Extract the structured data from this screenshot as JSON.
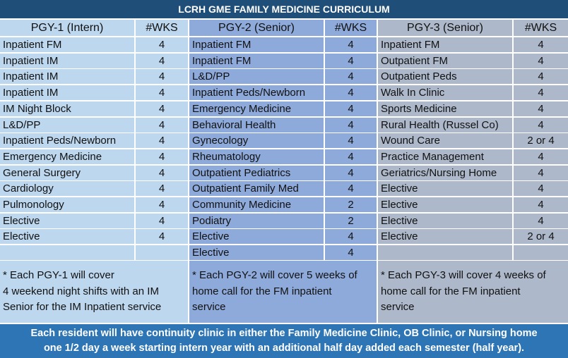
{
  "title": "LCRH GME FAMILY MEDICINE CURRICULUM",
  "columns": [
    {
      "header": "PGY-1 (Intern)",
      "wks_header": "#WKS",
      "rows": [
        [
          "Inpatient FM",
          "4"
        ],
        [
          "Inpatient IM",
          "4"
        ],
        [
          "Inpatient IM",
          "4"
        ],
        [
          "Inpatient IM",
          "4"
        ],
        [
          "IM Night Block",
          "4"
        ],
        [
          "L&D/PP",
          "4"
        ],
        [
          "Inpatient Peds/Newborn",
          "4"
        ],
        [
          "Emergency Medicine",
          "4"
        ],
        [
          "General Surgery",
          "4"
        ],
        [
          "Cardiology",
          "4"
        ],
        [
          "Pulmonology",
          "4"
        ],
        [
          "Elective",
          "4"
        ],
        [
          "Elective",
          "4"
        ]
      ],
      "note": [
        "* Each PGY-1 will cover",
        "4 weekend night shifts with an IM",
        "Senior for the IM Inpatient service"
      ]
    },
    {
      "header": "PGY-2 (Senior)",
      "wks_header": "#WKS",
      "rows": [
        [
          "Inpatient FM",
          "4"
        ],
        [
          "Inpatient FM",
          "4"
        ],
        [
          "L&D/PP",
          "4"
        ],
        [
          "Inpatient Peds/Newborn",
          "4"
        ],
        [
          "Emergency Medicine",
          "4"
        ],
        [
          "Behavioral Health",
          "4"
        ],
        [
          "Gynecology",
          "4"
        ],
        [
          "Rheumatology",
          "4"
        ],
        [
          "Outpatient Pediatrics",
          "4"
        ],
        [
          "Outpatient Family Med",
          "4"
        ],
        [
          "Community Medicine",
          "2"
        ],
        [
          "Podiatry",
          "2"
        ],
        [
          "Elective",
          "4"
        ],
        [
          "Elective",
          "4"
        ]
      ],
      "note": [
        "* Each PGY-2 will cover 5 weeks of",
        "home call for the FM inpatient",
        "service"
      ]
    },
    {
      "header": "PGY-3 (Senior)",
      "wks_header": "#WKS",
      "rows": [
        [
          "Inpatient FM",
          "4"
        ],
        [
          "Outpatient FM",
          "4"
        ],
        [
          "Outpatient Peds",
          "4"
        ],
        [
          "Walk In Clinic",
          "4"
        ],
        [
          "Sports Medicine",
          "4"
        ],
        [
          "Rural Health (Russel Co)",
          "4"
        ],
        [
          "Wound Care",
          "2 or 4"
        ],
        [
          "Practice Management",
          "4"
        ],
        [
          "Geriatrics/Nursing Home",
          "4"
        ],
        [
          "Elective",
          "4"
        ],
        [
          "Elective",
          "4"
        ],
        [
          "Elective",
          "4"
        ],
        [
          "Elective",
          "2 or 4"
        ]
      ],
      "note": [
        "* Each PGY-3 will cover 4 weeks of",
        "home call for the FM inpatient",
        "service"
      ]
    }
  ],
  "footer": [
    "Each resident will have continuity clinic in either the Family Medicine Clinic, OB Clinic, or Nursing home",
    "one 1/2 day a week starting intern year with an additional half day added each semester (half year)."
  ]
}
